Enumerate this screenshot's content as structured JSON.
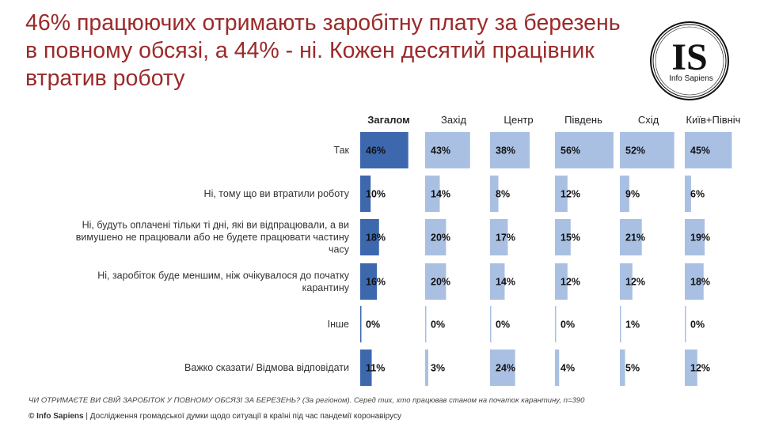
{
  "title": "46% працюючих отримають заробітну плату за березень в повному обсязі, а 44% - ні. Кожен десятий працівник втратив роботу",
  "logo": {
    "letters": "IS",
    "name": "Info Sapiens"
  },
  "question": "ЧИ ОТРИМАЄТЕ ВИ СВІЙ ЗАРОБІТОК У ПОВНОМУ ОБСЯЗІ ЗА БЕРЕЗЕНЬ? (За регіоном). Серед тих, хто працював станом на початок карантину, n=390",
  "footer": {
    "brand": "© Info Sapiens",
    "text": " | Дослідження громадської думки щодо ситуації в країні під час пандемії коронавірусу"
  },
  "colors": {
    "title": "#9b2a2a",
    "primary_bar": "#3d68ad",
    "secondary_bar": "#a9c0e3"
  },
  "chart_data": {
    "type": "bar",
    "orientation": "horizontal",
    "panels": [
      "Загалом",
      "Захід",
      "Центр",
      "Південь",
      "Схід",
      "Київ+Північ"
    ],
    "categories": [
      [
        "Так"
      ],
      [
        "Ні, тому що ви втратили роботу"
      ],
      [
        "Ні, будуть оплачені тільки ті дні, які ви відпрацювали, а ви",
        "вимушено не працювали або не будете працювати частину",
        "часу"
      ],
      [
        "Ні, заробіток буде меншим, ніж очікувалося до початку",
        "карантину"
      ],
      [
        "Інше"
      ],
      [
        "Важко сказати/ Відмова відповідати"
      ]
    ],
    "series": [
      {
        "name": "Загалом",
        "values": [
          46,
          10,
          18,
          16,
          0,
          11
        ],
        "labels": [
          "46%",
          "10%",
          "18%",
          "16%",
          "0%",
          "11%"
        ]
      },
      {
        "name": "Захід",
        "values": [
          43,
          14,
          20,
          20,
          0,
          3
        ],
        "labels": [
          "43%",
          "14%",
          "20%",
          "20%",
          "0%",
          "3%"
        ]
      },
      {
        "name": "Центр",
        "values": [
          38,
          8,
          17,
          14,
          0,
          24
        ],
        "labels": [
          "38%",
          "8%",
          "17%",
          "14%",
          "0%",
          "24%"
        ]
      },
      {
        "name": "Південь",
        "values": [
          56,
          12,
          15,
          12,
          0,
          4
        ],
        "labels": [
          "56%",
          "12%",
          "15%",
          "12%",
          "0%",
          "4%"
        ]
      },
      {
        "name": "Схід",
        "values": [
          52,
          9,
          21,
          12,
          1,
          5
        ],
        "labels": [
          "52%",
          "9%",
          "21%",
          "12%",
          "1%",
          "5%"
        ]
      },
      {
        "name": "Київ+Північ",
        "values": [
          45,
          6,
          19,
          18,
          0,
          12
        ],
        "labels": [
          "45%",
          "6%",
          "19%",
          "18%",
          "0%",
          "12%"
        ]
      }
    ],
    "unit": "%",
    "highlighted_panel": "Загалом"
  }
}
